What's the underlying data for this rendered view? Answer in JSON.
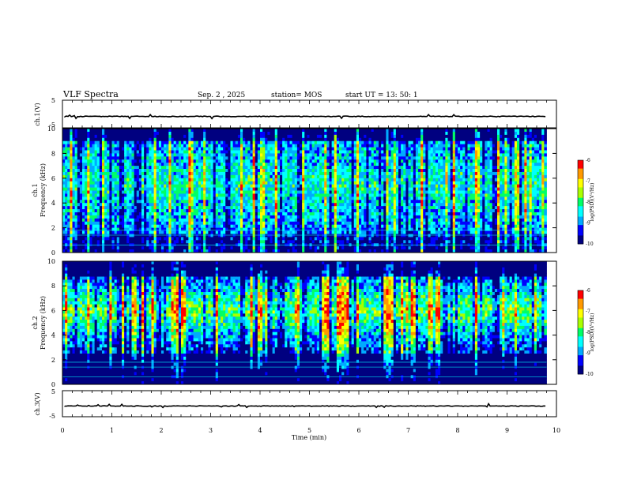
{
  "header": {
    "title": "VLF Spectra",
    "date": "Sep. 2 , 2025",
    "station": "station= MOS",
    "start_ut": "start UT =   13: 50: 1"
  },
  "colors": {
    "stops": [
      "#000080",
      "#0000ff",
      "#00aaff",
      "#00ffff",
      "#00ff66",
      "#aaff00",
      "#ffff00",
      "#ff9900",
      "#ff0000",
      "#ffc0c0",
      "#ffffff"
    ],
    "background": "#ffffff"
  },
  "chart_data": [
    {
      "type": "line",
      "ylabel": "ch.1(V)",
      "ylim": [
        -5,
        5
      ],
      "yticks": [
        "5",
        "-5"
      ],
      "xlim": [
        0,
        10
      ],
      "description_level": 0
    },
    {
      "type": "heatmap",
      "ylabel_line1": "ch.1",
      "ylabel_line2": "Frequency (kHz)",
      "ylim": [
        0,
        10
      ],
      "yticks": [
        "0",
        "2",
        "4",
        "6",
        "8",
        "10"
      ],
      "xlim": [
        0,
        10
      ],
      "data_end_min": 9.8,
      "band_center_khz": 6,
      "colorbar": {
        "label": "log(PSD)(V²/Hz)",
        "ticks": [
          "-6",
          "-7",
          "-8",
          "-9",
          "-10"
        ],
        "range": [
          -10,
          -6
        ]
      }
    },
    {
      "type": "heatmap",
      "ylabel_line1": "ch.2",
      "ylabel_line2": "Frequency (kHz)",
      "ylim": [
        0,
        10
      ],
      "yticks": [
        "0",
        "2",
        "4",
        "6",
        "8",
        "10"
      ],
      "xlim": [
        0,
        10
      ],
      "data_end_min": 9.8,
      "band_center_khz": 6,
      "colorbar": {
        "label": "log(PSD)(V²/Hz)",
        "ticks": [
          "-6",
          "-7",
          "-8",
          "-9",
          "-10"
        ],
        "range": [
          -10,
          -6
        ]
      }
    },
    {
      "type": "line",
      "ylabel": "ch.3(V)",
      "ylim": [
        -5,
        5
      ],
      "yticks": [
        "5",
        "-5"
      ],
      "xlim": [
        0,
        10
      ],
      "xlabel": "Time (min)",
      "xticks": [
        "0",
        "1",
        "2",
        "3",
        "4",
        "5",
        "6",
        "7",
        "8",
        "9",
        "10"
      ]
    }
  ]
}
